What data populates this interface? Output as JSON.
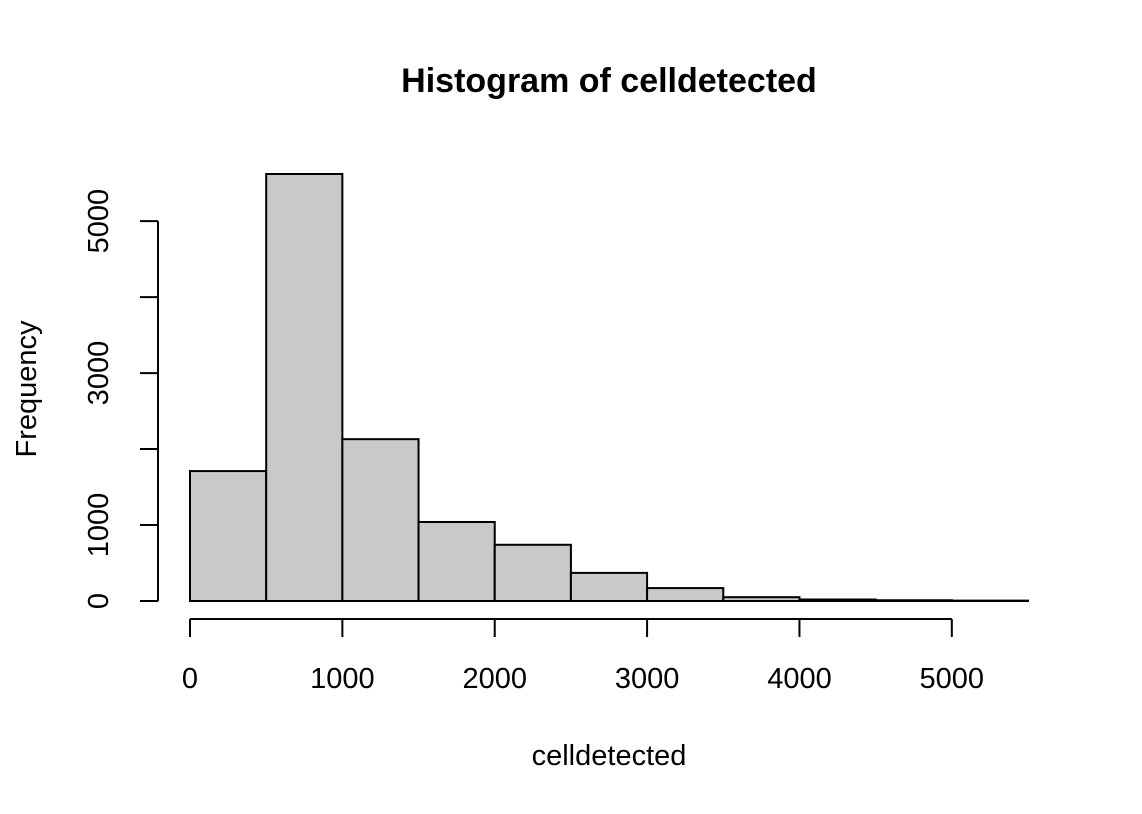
{
  "chart_data": {
    "type": "bar",
    "title": "Histogram of celldetected",
    "xlabel": "celldetected",
    "ylabel": "Frequency",
    "bin_edges": [
      0,
      500,
      1000,
      1500,
      2000,
      2500,
      3000,
      3500,
      4000,
      4500,
      5000,
      5500
    ],
    "values": [
      1710,
      5620,
      2130,
      1040,
      740,
      370,
      170,
      50,
      20,
      10,
      5
    ],
    "xlim": [
      0,
      5500
    ],
    "ylim": [
      0,
      5620
    ],
    "x_ticks": [
      0,
      1000,
      2000,
      3000,
      4000,
      5000
    ],
    "y_ticks": [
      0,
      1000,
      2000,
      3000,
      4000,
      5000
    ],
    "y_tick_labels": [
      "0",
      "1000",
      "",
      "3000",
      "",
      "5000"
    ],
    "bar_fill": "#c9c9c9",
    "grid": false,
    "legend": "none"
  }
}
